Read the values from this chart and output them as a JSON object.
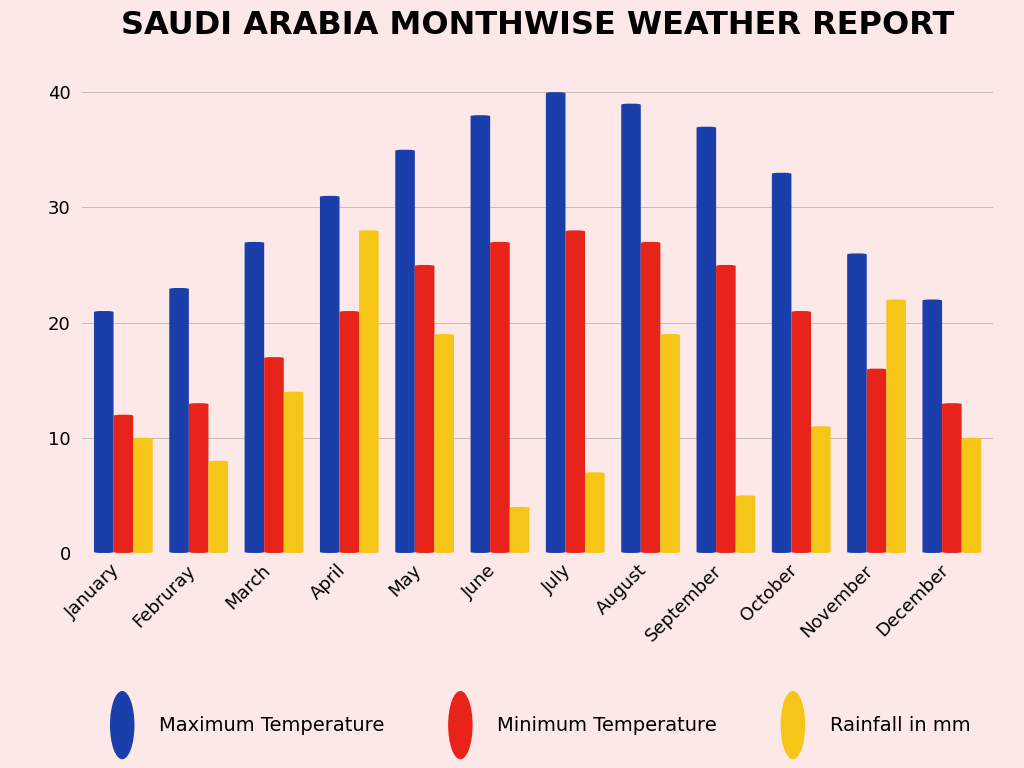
{
  "title": "SAUDI ARABIA MONTHWISE WEATHER REPORT",
  "months": [
    "January",
    "Februray",
    "March",
    "April",
    "May",
    "June",
    "July",
    "August",
    "September",
    "October",
    "November",
    "December"
  ],
  "max_temp": [
    21,
    23,
    27,
    31,
    35,
    38,
    40,
    39,
    37,
    33,
    26,
    22
  ],
  "min_temp": [
    12,
    13,
    17,
    21,
    25,
    27,
    28,
    27,
    25,
    21,
    16,
    13
  ],
  "rainfall": [
    10,
    8,
    14,
    28,
    19,
    4,
    7,
    19,
    5,
    11,
    22,
    10
  ],
  "color_max": "#1a3faa",
  "color_min": "#e8231a",
  "color_rain": "#f5c518",
  "background": "#fce8e6",
  "ylim": [
    0,
    42
  ],
  "yticks": [
    0,
    10,
    20,
    30,
    40
  ],
  "bar_width": 0.26,
  "title_fontsize": 23,
  "legend_fontsize": 14,
  "tick_fontsize": 13,
  "legend_labels": [
    "Maximum Temperature",
    "Minimum Temperature",
    "Rainfall in mm"
  ]
}
